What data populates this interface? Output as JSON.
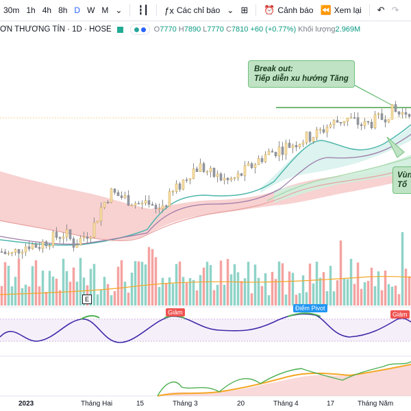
{
  "toolbar": {
    "timeframes": [
      "30m",
      "1h",
      "4h",
      "8h",
      "D",
      "W",
      "M"
    ],
    "active_timeframe": "D",
    "indicators_label": "Các chỉ báo",
    "alert_label": "Cảnh báo",
    "replay_label": "Xem lại"
  },
  "legend": {
    "symbol": "ƠN THƯƠNG TÍN · 1D · HOSE",
    "open_label": "O",
    "open": "7770",
    "high_label": "H",
    "high": "7890",
    "low_label": "L",
    "low": "7770",
    "close_label": "C",
    "close": "7810",
    "change": "+60 (+0.77%)",
    "volume_label": "Khối lượng",
    "volume": "2.969M"
  },
  "annotations": {
    "breakout_line1": "Break out:",
    "breakout_line2": "Tiếp diễn xu hướng Tăng",
    "zone_line1": "Vùn",
    "zone_line2": "Tổ",
    "pivot_label": "Điểm Pivot",
    "decrease_1": "Giảm",
    "decrease_2": "Giảm",
    "marker_e": "E"
  },
  "x_axis": [
    "2023",
    "Tháng Hai",
    "15",
    "Tháng 3",
    "20",
    "Tháng 4",
    "17",
    "Tháng Năm"
  ],
  "colors": {
    "up": "#26a69a",
    "down": "#ef5350",
    "accent": "#2962ff",
    "ribbon_red": "#f7c9c9",
    "ribbon_green": "#cfeedd"
  },
  "chart_data": {
    "type": "candlestick",
    "closes": [
      5900,
      5850,
      5950,
      6000,
      5980,
      6050,
      6100,
      6150,
      6000,
      6100,
      6200,
      6500,
      6700,
      6650,
      6600,
      6550,
      6500,
      6450,
      6550,
      6700,
      6850,
      7000,
      7050,
      6950,
      6900,
      6850,
      6900,
      7000,
      7100,
      7200,
      7250,
      7300,
      7350,
      7400,
      7450,
      7500,
      7600,
      7650,
      7700,
      7650,
      7600,
      7650,
      7700,
      7800,
      7750,
      7810
    ]
  }
}
